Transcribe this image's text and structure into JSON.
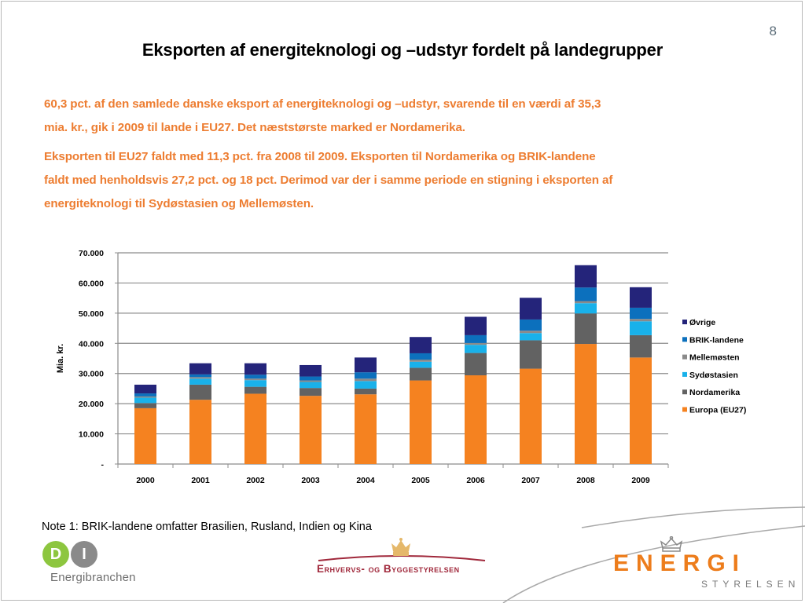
{
  "slide": {
    "number": "8",
    "title": "Eksporten af energiteknologi og –udstyr fordelt på landegrupper",
    "paragraphs": [
      {
        "lines": [
          "60,3 pct. af den samlede danske eksport af energiteknologi og –udstyr, svarende til en værdi af 35,3",
          "mia. kr., gik i 2009 til lande i EU27. Det næststørste marked er Nordamerika."
        ]
      },
      {
        "lines": [
          "Eksporten til EU27 faldt med 11,3 pct. fra 2008 til 2009. Eksporten til Nordamerika og BRIK-landene",
          "faldt med henholdsvis 27,2 pct. og 18 pct. Derimod var der i samme periode en stigning i eksporten af",
          "energiteknologi til Sydøstasien og Mellemøsten."
        ]
      }
    ],
    "note": "Note 1: BRIK-landene omfatter Brasilien, Rusland, Indien og Kina",
    "colors": {
      "text_accent": "#ed7d31",
      "title": "#000000"
    }
  },
  "logos": {
    "di": {
      "letters": [
        "D",
        "I"
      ],
      "subtitle": "Energibranchen"
    },
    "ebst": {
      "text": "Erhvervs- og Byggestyrelsen"
    },
    "energistyrelsen": {
      "main": "ENERGI",
      "sub": "STYRELSEN"
    }
  },
  "chart_data": {
    "type": "bar",
    "stacked": true,
    "title": "",
    "xlabel": "",
    "ylabel": "Mia. kr.",
    "ylim": [
      0,
      70000
    ],
    "yticks": [
      0,
      10000,
      20000,
      30000,
      40000,
      50000,
      60000,
      70000
    ],
    "ytick_labels": [
      "-",
      "10.000",
      "20.000",
      "30.000",
      "40.000",
      "50.000",
      "60.000",
      "70.000"
    ],
    "grid": true,
    "legend_position": "right",
    "categories": [
      "2000",
      "2001",
      "2002",
      "2003",
      "2004",
      "2005",
      "2006",
      "2007",
      "2008",
      "2009"
    ],
    "series": [
      {
        "name": "Europa (EU27)",
        "color": "#f58220",
        "values": [
          18500,
          21300,
          23300,
          22600,
          23100,
          27700,
          29400,
          31600,
          39800,
          35300
        ]
      },
      {
        "name": "Nordamerika",
        "color": "#626262",
        "values": [
          1700,
          5000,
          2300,
          2600,
          1900,
          4200,
          7400,
          9400,
          10100,
          7400
        ]
      },
      {
        "name": "Sydøstasien",
        "color": "#19b1ea",
        "values": [
          1800,
          2000,
          2200,
          2000,
          2500,
          2000,
          2700,
          2400,
          3400,
          4600
        ]
      },
      {
        "name": "Mellemøsten",
        "color": "#8a8a8a",
        "values": [
          400,
          500,
          500,
          500,
          800,
          700,
          600,
          800,
          700,
          800
        ]
      },
      {
        "name": "BRIK-landene",
        "color": "#0c70bd",
        "values": [
          1000,
          900,
          1300,
          1300,
          2100,
          2100,
          2600,
          3700,
          4500,
          3700
        ]
      },
      {
        "name": "Øvrige",
        "color": "#24247a",
        "values": [
          2900,
          3700,
          3800,
          3800,
          4900,
          5400,
          6100,
          7200,
          7400,
          6800
        ]
      }
    ],
    "legend_order": [
      "Øvrige",
      "BRIK-landene",
      "Mellemøsten",
      "Sydøstasien",
      "Nordamerika",
      "Europa (EU27)"
    ]
  }
}
